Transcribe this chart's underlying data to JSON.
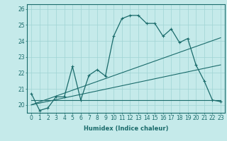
{
  "xlabel": "Humidex (Indice chaleur)",
  "ylabel": "",
  "bg_color": "#c5eaea",
  "line_color": "#1a6b6b",
  "grid_color": "#9fd4d4",
  "xlim": [
    -0.5,
    23.5
  ],
  "ylim": [
    19.5,
    26.3
  ],
  "xticks": [
    0,
    1,
    2,
    3,
    4,
    5,
    6,
    7,
    8,
    9,
    10,
    11,
    12,
    13,
    14,
    15,
    16,
    17,
    18,
    19,
    20,
    21,
    22,
    23
  ],
  "yticks": [
    20,
    21,
    22,
    23,
    24,
    25,
    26
  ],
  "series1_x": [
    0,
    1,
    2,
    3,
    4,
    5,
    6,
    7,
    8,
    9,
    10,
    11,
    12,
    13,
    14,
    15,
    16,
    17,
    18,
    19,
    20,
    21,
    22,
    23
  ],
  "series1_y": [
    20.7,
    19.65,
    19.8,
    20.5,
    20.5,
    22.4,
    20.3,
    21.85,
    22.2,
    21.8,
    24.3,
    25.4,
    25.6,
    25.6,
    25.1,
    25.1,
    24.3,
    24.75,
    23.9,
    24.15,
    22.5,
    21.5,
    20.3,
    20.2
  ],
  "series2_x": [
    0,
    23
  ],
  "series2_y": [
    20.0,
    22.5
  ],
  "series3_x": [
    0,
    23
  ],
  "series3_y": [
    20.0,
    24.2
  ],
  "series4_x": [
    0,
    23
  ],
  "series4_y": [
    20.3,
    20.3
  ],
  "font_color": "#1a6b6b",
  "font_size_label": 6,
  "font_size_tick": 5.5
}
